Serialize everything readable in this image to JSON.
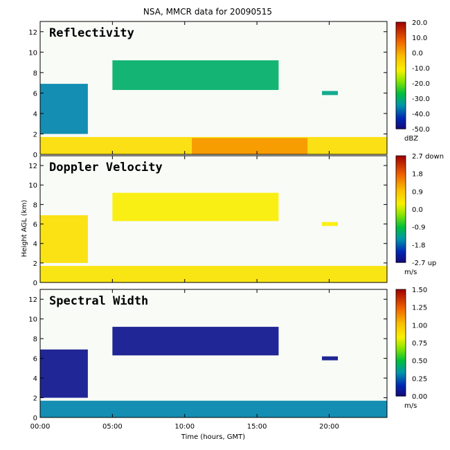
{
  "chart_data": {
    "title": "NSA, MMCR data for 20090515",
    "xlabel": "Time (hours, GMT)",
    "ylabel": "Height AGL (km)",
    "xlim": [
      0,
      24
    ],
    "x_ticks": [
      0,
      5,
      10,
      15,
      20
    ],
    "x_tick_labels": [
      "00:00",
      "05:00",
      "10:00",
      "15:00",
      "20:00"
    ],
    "ylim": [
      0,
      13
    ],
    "y_ticks": [
      0,
      2,
      4,
      6,
      8,
      10,
      12
    ],
    "y_tick_labels": [
      "0",
      "2",
      "4",
      "6",
      "8",
      "10",
      "12"
    ],
    "panels": [
      {
        "type": "heatmap",
        "name": "Reflectivity",
        "colorbar_unit": "dBZ",
        "colorbar_range": [
          -50,
          20
        ],
        "colorbar_tick_values": [
          20,
          10,
          0,
          -10,
          -20,
          -30,
          -40,
          -50
        ],
        "colorbar_tick_labels": [
          "20.0",
          "10.0",
          "0.0",
          "-10.0",
          "-20.0",
          "-30.0",
          "-40.0",
          "-50.0"
        ],
        "layers": [
          {
            "x": [
              0,
              3.3
            ],
            "y": [
              2.0,
              6.9
            ],
            "value": -36
          },
          {
            "x": [
              5.0,
              16.5
            ],
            "y": [
              6.3,
              9.2
            ],
            "value": -30
          },
          {
            "x": [
              19.5,
              20.6
            ],
            "y": [
              5.8,
              6.2
            ],
            "value": -32
          },
          {
            "x": [
              0,
              24
            ],
            "y": [
              0.0,
              1.7
            ],
            "value": -8
          },
          {
            "x": [
              10.5,
              18.5
            ],
            "y": [
              0.0,
              1.6
            ],
            "value": 2
          }
        ]
      },
      {
        "type": "heatmap",
        "name": "Doppler Velocity",
        "colorbar_unit": "m/s",
        "colorbar_range": [
          -2.7,
          2.7
        ],
        "colorbar_tick_values": [
          2.7,
          1.8,
          0.9,
          0.0,
          -0.9,
          -1.8,
          -2.7
        ],
        "colorbar_tick_labels": [
          "2.7 down",
          "1.8",
          "0.9",
          "0.0",
          "-0.9",
          "-1.8",
          "-2.7 up"
        ],
        "layers": [
          {
            "x": [
              0,
              3.3
            ],
            "y": [
              2.0,
              6.9
            ],
            "value": 0.5
          },
          {
            "x": [
              5.0,
              16.5
            ],
            "y": [
              6.3,
              9.2
            ],
            "value": 0.3
          },
          {
            "x": [
              19.5,
              20.6
            ],
            "y": [
              5.8,
              6.2
            ],
            "value": 0.3
          },
          {
            "x": [
              0,
              24
            ],
            "y": [
              0.0,
              1.7
            ],
            "value": 0.45
          }
        ]
      },
      {
        "type": "heatmap",
        "name": "Spectral Width",
        "colorbar_unit": "m/s",
        "colorbar_range": [
          0,
          1.5
        ],
        "colorbar_tick_values": [
          1.5,
          1.25,
          1.0,
          0.75,
          0.5,
          0.25,
          0.0
        ],
        "colorbar_tick_labels": [
          "1.50",
          "1.25",
          "1.00",
          "0.75",
          "0.50",
          "0.25",
          "0.00"
        ],
        "layers": [
          {
            "x": [
              0,
              3.3
            ],
            "y": [
              2.0,
              6.9
            ],
            "value": 0.05
          },
          {
            "x": [
              5.0,
              16.5
            ],
            "y": [
              6.3,
              9.2
            ],
            "value": 0.05
          },
          {
            "x": [
              19.5,
              20.6
            ],
            "y": [
              5.8,
              6.2
            ],
            "value": 0.05
          },
          {
            "x": [
              0,
              24
            ],
            "y": [
              0.0,
              1.7
            ],
            "value": 0.3
          }
        ]
      }
    ]
  }
}
